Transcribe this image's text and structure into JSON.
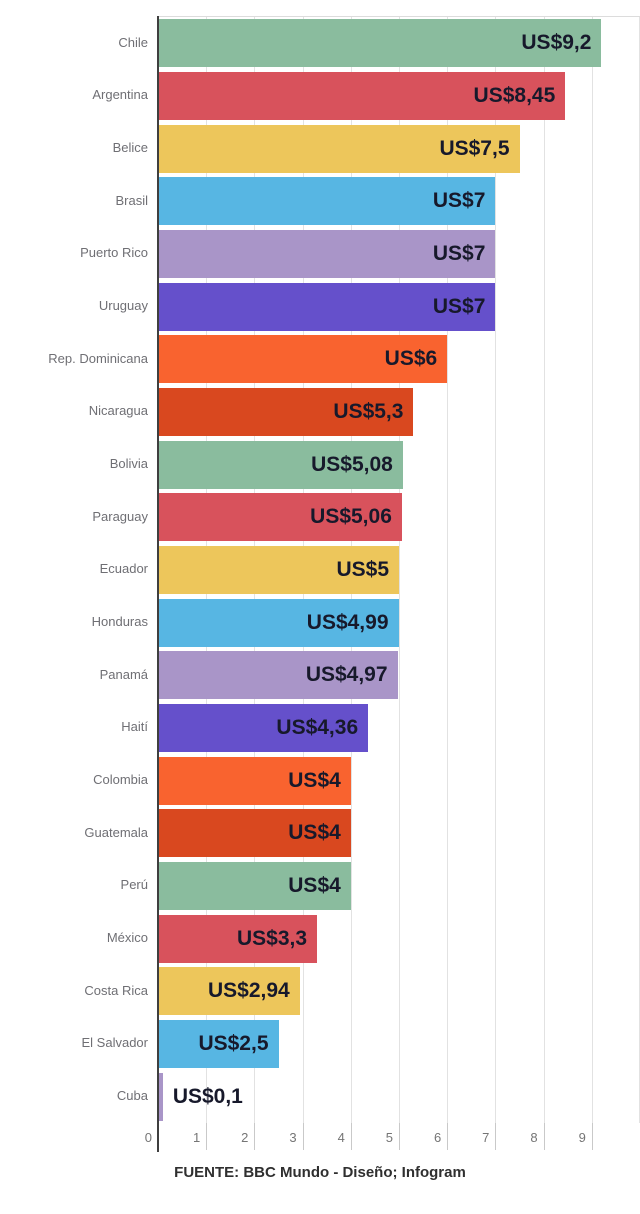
{
  "chart_data": {
    "type": "bar",
    "orientation": "horizontal",
    "title": "",
    "xlabel": "",
    "ylabel": "",
    "currency_prefix": "US$",
    "xlim": [
      0,
      10
    ],
    "x_ticks": [
      "0",
      "1",
      "2",
      "3",
      "4",
      "5",
      "6",
      "7",
      "8",
      "9"
    ],
    "grid": "vertical",
    "legend": "none",
    "bars": [
      {
        "label": "Chile",
        "value": 9.2,
        "display": "US$9,2",
        "color": "#8abc9e"
      },
      {
        "label": "Argentina",
        "value": 8.45,
        "display": "US$8,45",
        "color": "#d8525c"
      },
      {
        "label": "Belice",
        "value": 7.5,
        "display": "US$7,5",
        "color": "#edc65b"
      },
      {
        "label": "Brasil",
        "value": 7,
        "display": "US$7",
        "color": "#57b6e3"
      },
      {
        "label": "Puerto Rico",
        "value": 7,
        "display": "US$7",
        "color": "#a995c8"
      },
      {
        "label": "Uruguay",
        "value": 7,
        "display": "US$7",
        "color": "#6550cb"
      },
      {
        "label": "Rep. Dominicana",
        "value": 6,
        "display": "US$6",
        "color": "#f9632f"
      },
      {
        "label": "Nicaragua",
        "value": 5.3,
        "display": "US$5,3",
        "color": "#d9481f"
      },
      {
        "label": "Bolivia",
        "value": 5.08,
        "display": "US$5,08",
        "color": "#8abc9e"
      },
      {
        "label": "Paraguay",
        "value": 5.06,
        "display": "US$5,06",
        "color": "#d8525c"
      },
      {
        "label": "Ecuador",
        "value": 5,
        "display": "US$5",
        "color": "#edc65b"
      },
      {
        "label": "Honduras",
        "value": 4.99,
        "display": "US$4,99",
        "color": "#57b6e3"
      },
      {
        "label": "Panamá",
        "value": 4.97,
        "display": "US$4,97",
        "color": "#a995c8"
      },
      {
        "label": "Haití",
        "value": 4.36,
        "display": "US$4,36",
        "color": "#6550cb"
      },
      {
        "label": "Colombia",
        "value": 4,
        "display": "US$4",
        "color": "#f9632f"
      },
      {
        "label": "Guatemala",
        "value": 4,
        "display": "US$4",
        "color": "#d9481f"
      },
      {
        "label": "Perú",
        "value": 4,
        "display": "US$4",
        "color": "#8abc9e"
      },
      {
        "label": "México",
        "value": 3.3,
        "display": "US$3,3",
        "color": "#d8525c"
      },
      {
        "label": "Costa Rica",
        "value": 2.94,
        "display": "US$2,94",
        "color": "#edc65b"
      },
      {
        "label": "El Salvador",
        "value": 2.5,
        "display": "US$2,5",
        "color": "#57b6e3"
      },
      {
        "label": "Cuba",
        "value": 0.1,
        "display": "US$0,1",
        "color": "#a995c8"
      }
    ],
    "source": "FUENTE: BBC Mundo - Diseño; Infogram"
  },
  "style_colors": {
    "background": "#ffffff",
    "axis_line": "#3f3f3f",
    "gridline": "#e2e2e2",
    "tick_mark": "#c9c9c9",
    "tick_label": "#757575",
    "category_label": "#6f6f74",
    "value_label": "#17192b"
  }
}
